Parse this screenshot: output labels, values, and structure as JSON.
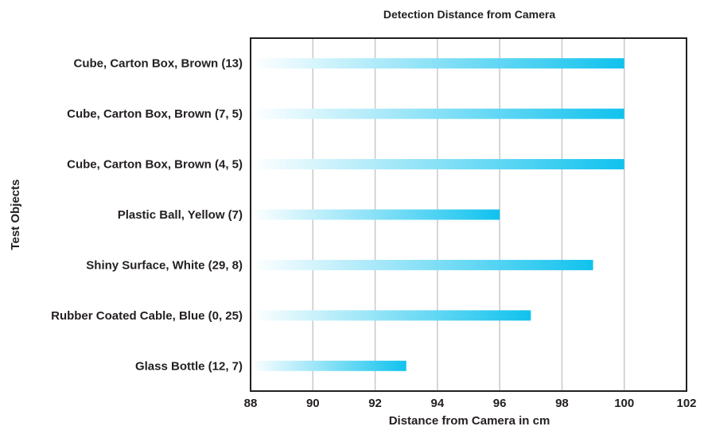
{
  "chart_data": {
    "type": "bar",
    "orientation": "horizontal",
    "title": "Detection Distance from Camera",
    "xlabel": "Distance from Camera in cm",
    "ylabel": "Test Objects",
    "categories": [
      "Cube, Carton Box, Brown (13)",
      "Cube, Carton Box, Brown (7, 5)",
      "Cube, Carton Box, Brown (4, 5)",
      "Plastic Ball, Yellow (7)",
      "Shiny Surface, White (29, 8)",
      "Rubber Coated Cable, Blue (0, 25)",
      "Glass Bottle (12, 7)"
    ],
    "values": [
      100,
      100,
      100,
      96,
      99,
      97,
      93
    ],
    "xlim": [
      88,
      102
    ],
    "xticks": [
      "88",
      "90",
      "92",
      "94",
      "96",
      "98",
      "100",
      "102"
    ],
    "grid": true,
    "bar_color_start": "#ffffff",
    "bar_color_end": "#10c2ee",
    "legend": "none"
  }
}
